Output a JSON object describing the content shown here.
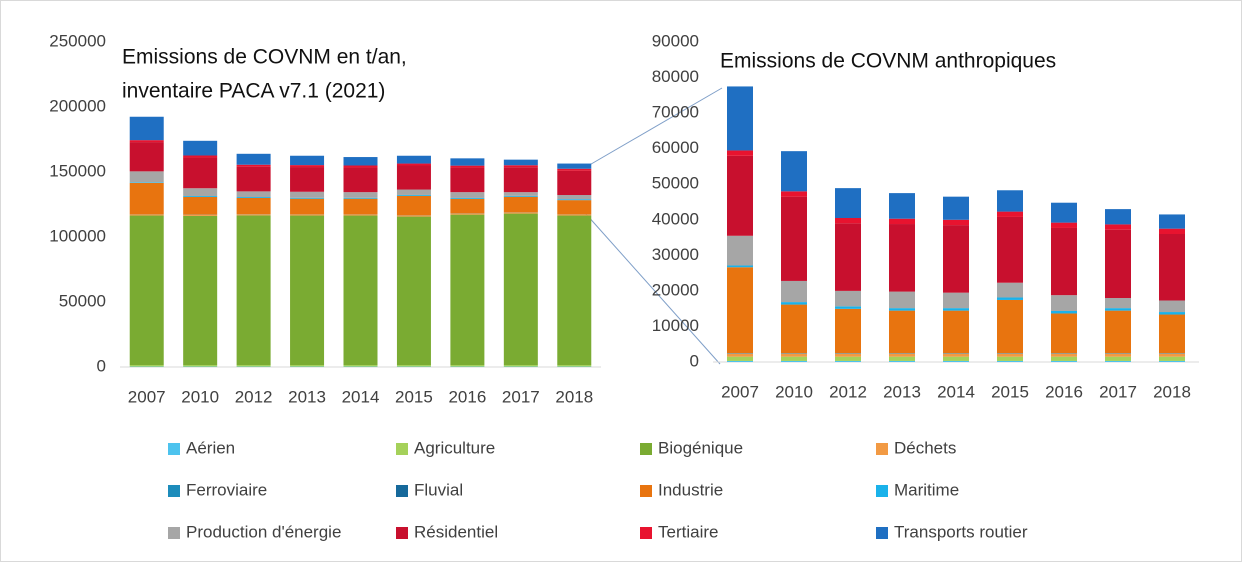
{
  "chart_data": [
    {
      "type": "stacked_bar",
      "title": [
        "Emissions de COVNM en t/an,",
        "inventaire PACA v7.1 (2021)"
      ],
      "categories": [
        "2007",
        "2010",
        "2012",
        "2013",
        "2014",
        "2015",
        "2016",
        "2017",
        "2018"
      ],
      "ylim": [
        0,
        250000
      ],
      "yticks": [
        0,
        50000,
        100000,
        150000,
        200000,
        250000
      ],
      "series": [
        {
          "name": "Aérien",
          "color": "#4dc3ee",
          "values": [
            300,
            300,
            300,
            300,
            300,
            300,
            300,
            300,
            300
          ]
        },
        {
          "name": "Agriculture",
          "color": "#a5d15a",
          "values": [
            1200,
            1200,
            1200,
            1200,
            1200,
            1200,
            1200,
            1200,
            1200
          ]
        },
        {
          "name": "Biogénique",
          "color": "#7aab32",
          "values": [
            115000,
            114700,
            115100,
            115000,
            115000,
            114200,
            115700,
            116500,
            115000
          ]
        },
        {
          "name": "Déchets",
          "color": "#f29a44",
          "values": [
            800,
            800,
            800,
            800,
            800,
            800,
            800,
            800,
            800
          ]
        },
        {
          "name": "Ferroviaire",
          "color": "#1d8cbb",
          "values": [
            100,
            100,
            100,
            100,
            100,
            100,
            100,
            100,
            100
          ]
        },
        {
          "name": "Fluvial",
          "color": "#16699b",
          "values": [
            50,
            50,
            50,
            50,
            50,
            50,
            50,
            50,
            50
          ]
        },
        {
          "name": "Industrie",
          "color": "#e8740f",
          "values": [
            24200,
            13700,
            12500,
            12000,
            12000,
            15000,
            11200,
            12000,
            10900
          ]
        },
        {
          "name": "Maritime",
          "color": "#1ab2ea",
          "values": [
            500,
            700,
            700,
            700,
            700,
            700,
            700,
            700,
            700
          ]
        },
        {
          "name": "Production d'énergie",
          "color": "#a6a6a6",
          "values": [
            8350,
            5950,
            4350,
            4650,
            4350,
            4150,
            4450,
            2850,
            3250
          ]
        },
        {
          "name": "Résidentiel",
          "color": "#c8102e",
          "values": [
            22500,
            23700,
            19000,
            19000,
            19000,
            18500,
            18900,
            19200,
            18700
          ]
        },
        {
          "name": "Tertiaire",
          "color": "#e8132f",
          "values": [
            1500,
            1500,
            1500,
            1500,
            1500,
            1500,
            1500,
            1500,
            1500
          ]
        },
        {
          "name": "Transports routier",
          "color": "#1f6fc2",
          "values": [
            18000,
            11300,
            8400,
            7200,
            6500,
            6000,
            5600,
            4300,
            4000
          ]
        }
      ]
    },
    {
      "type": "stacked_bar",
      "title": [
        "Emissions de COVNM anthropiques"
      ],
      "categories": [
        "2007",
        "2010",
        "2012",
        "2013",
        "2014",
        "2015",
        "2016",
        "2017",
        "2018"
      ],
      "ylim": [
        0,
        90000
      ],
      "yticks": [
        0,
        10000,
        20000,
        30000,
        40000,
        50000,
        60000,
        70000,
        80000,
        90000
      ],
      "series": [
        {
          "name": "Aérien",
          "color": "#4dc3ee",
          "values": [
            300,
            300,
            300,
            300,
            300,
            300,
            300,
            300,
            300
          ]
        },
        {
          "name": "Agriculture",
          "color": "#a5d15a",
          "values": [
            1200,
            1200,
            1200,
            1200,
            1200,
            1200,
            1200,
            1200,
            1200
          ]
        },
        {
          "name": "Déchets",
          "color": "#f29a44",
          "values": [
            800,
            800,
            800,
            800,
            800,
            800,
            800,
            800,
            800
          ]
        },
        {
          "name": "Ferroviaire",
          "color": "#1d8cbb",
          "values": [
            100,
            100,
            100,
            100,
            100,
            100,
            100,
            100,
            100
          ]
        },
        {
          "name": "Fluvial",
          "color": "#16699b",
          "values": [
            50,
            50,
            50,
            50,
            50,
            50,
            50,
            50,
            50
          ]
        },
        {
          "name": "Industrie",
          "color": "#e8740f",
          "values": [
            24200,
            13700,
            12500,
            12000,
            12000,
            15000,
            11200,
            12000,
            10900
          ]
        },
        {
          "name": "Maritime",
          "color": "#1ab2ea",
          "values": [
            500,
            700,
            700,
            700,
            700,
            700,
            700,
            700,
            700
          ]
        },
        {
          "name": "Production d'énergie",
          "color": "#a6a6a6",
          "values": [
            8350,
            5950,
            4350,
            4650,
            4350,
            4150,
            4450,
            2850,
            3250
          ]
        },
        {
          "name": "Résidentiel",
          "color": "#c8102e",
          "values": [
            22500,
            23700,
            19000,
            19000,
            19000,
            18500,
            18900,
            19200,
            18700
          ]
        },
        {
          "name": "Tertiaire",
          "color": "#e8132f",
          "values": [
            1500,
            1500,
            1500,
            1500,
            1500,
            1500,
            1500,
            1500,
            1500
          ]
        },
        {
          "name": "Transports routier",
          "color": "#1f6fc2",
          "values": [
            18000,
            11300,
            8400,
            7200,
            6500,
            6000,
            5600,
            4300,
            4000
          ]
        }
      ]
    }
  ]
}
